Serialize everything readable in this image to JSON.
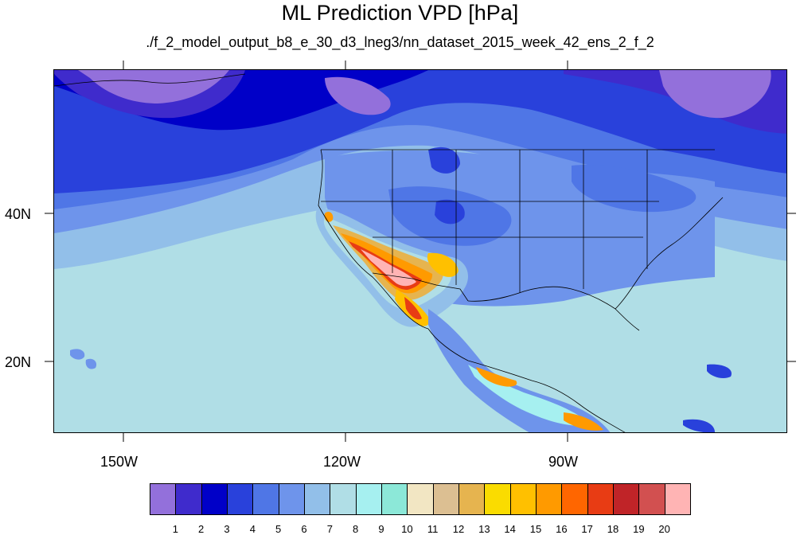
{
  "title": "ML Prediction VPD [hPa]",
  "subtitle": "./f_2_model_output_b8_e_30_d3_lneg3/nn_dataset_2015_week_42_ens_2_f_2",
  "axes": {
    "lat_labels": [
      "40N",
      "20N"
    ],
    "lon_labels": [
      "150W",
      "120W",
      "90W"
    ]
  },
  "colorbar": {
    "labels": [
      "1",
      "2",
      "3",
      "4",
      "5",
      "6",
      "7",
      "8",
      "9",
      "10",
      "11",
      "12",
      "13",
      "14",
      "15",
      "16",
      "17",
      "18",
      "19",
      "20"
    ],
    "colors": [
      "#9370DB",
      "#3F2BCC",
      "#0000C8",
      "#2941DB",
      "#4F76E6",
      "#6E94EB",
      "#92BFE9",
      "#B0DEE6",
      "#A6F0F0",
      "#8CE8D8",
      "#F2E6C3",
      "#DCBF92",
      "#E6B44F",
      "#FADC00",
      "#FFC000",
      "#FF9A00",
      "#FF6600",
      "#E83C14",
      "#C02428",
      "#D25050",
      "#FFB4B4"
    ]
  }
}
